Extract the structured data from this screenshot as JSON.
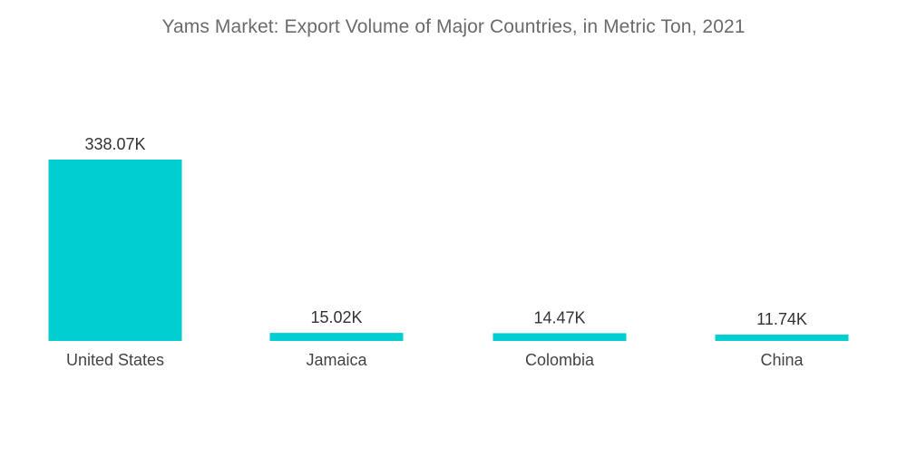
{
  "chart_data": {
    "type": "bar",
    "title": "Yams Market: Export Volume of Major Countries, in Metric Ton, 2021",
    "xlabel": "",
    "ylabel": "",
    "categories": [
      "United States",
      "Jamaica",
      "Colombia",
      "China"
    ],
    "values": [
      338070,
      15020,
      14470,
      11740
    ],
    "data_labels": [
      "338.07K",
      "15.02K",
      "14.47K",
      "11.74K"
    ],
    "ylim": [
      0,
      338070
    ],
    "grid": false,
    "legend": "none",
    "colors": {
      "bar": "#00CED1",
      "title": "#6b6b6b",
      "label": "#333333"
    }
  }
}
